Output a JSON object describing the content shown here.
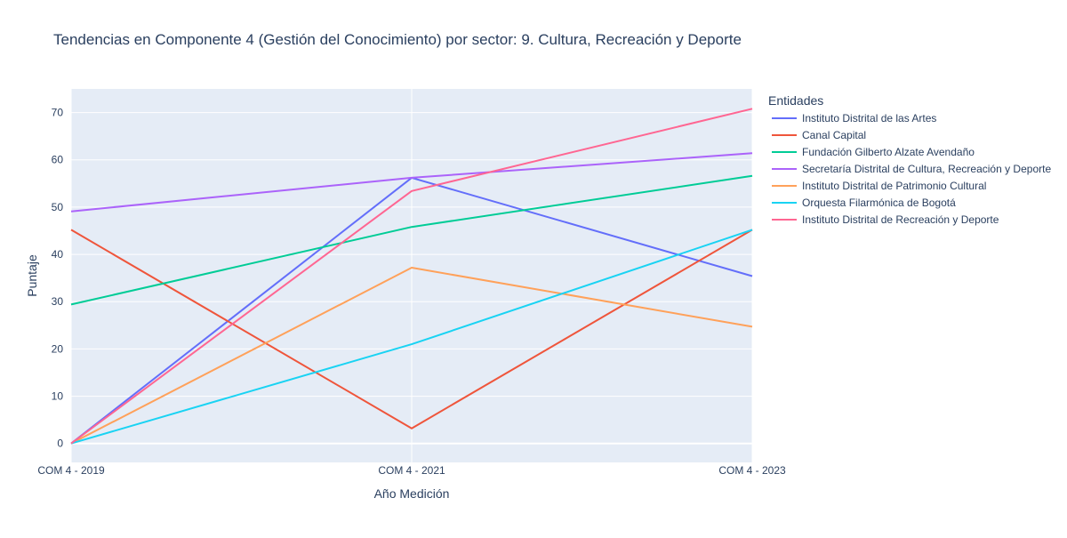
{
  "chart_data": {
    "type": "line",
    "title": "Tendencias en Componente 4 (Gestión del Conocimiento) por sector: 9. Cultura, Recreación y Deporte",
    "xlabel": "Año Medición",
    "ylabel": "Puntaje",
    "categories": [
      "COM 4 - 2019",
      "COM 4 - 2021",
      "COM 4 - 2023"
    ],
    "ylim": [
      -4,
      75
    ],
    "yticks": [
      0,
      10,
      20,
      30,
      40,
      50,
      60,
      70
    ],
    "grid": true,
    "legend_title": "Entidades",
    "legend_position": "right",
    "series": [
      {
        "name": "Instituto Distrital de las Artes",
        "color": "#636efa",
        "values": [
          0,
          56.2,
          35.4
        ]
      },
      {
        "name": "Canal Capital",
        "color": "#ef553b",
        "values": [
          45.2,
          3.2,
          45.2
        ]
      },
      {
        "name": "Fundación Gilberto Alzate Avendaño",
        "color": "#00cc96",
        "values": [
          29.4,
          45.8,
          56.6
        ]
      },
      {
        "name": "Secretaría Distrital de Cultura, Recreación y Deporte",
        "color": "#ab63fa",
        "values": [
          49.1,
          56.2,
          61.4
        ]
      },
      {
        "name": "Instituto Distrital de Patrimonio Cultural",
        "color": "#ffa15a",
        "values": [
          0,
          37.2,
          24.7
        ]
      },
      {
        "name": "Orquesta Filarmónica de Bogotá",
        "color": "#19d3f3",
        "values": [
          0,
          21.0,
          45.2
        ]
      },
      {
        "name": "Instituto Distrital de Recreación y Deporte",
        "color": "#ff6692",
        "values": [
          0,
          53.4,
          70.8
        ]
      }
    ]
  }
}
